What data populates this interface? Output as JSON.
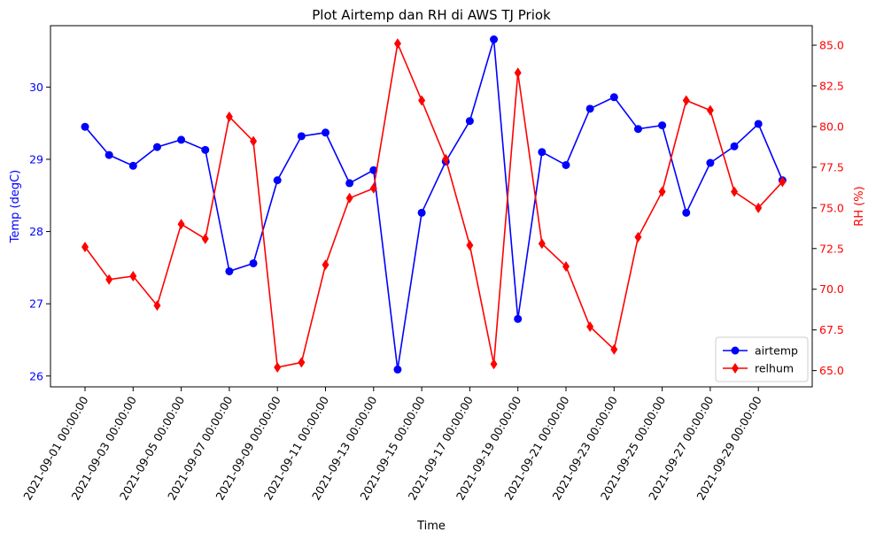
{
  "chart_data": {
    "type": "line",
    "title": "Plot Airtemp dan RH di AWS TJ Priok",
    "xlabel": "Time",
    "x": [
      "2021-09-01 00:00:00",
      "2021-09-02 00:00:00",
      "2021-09-03 00:00:00",
      "2021-09-04 00:00:00",
      "2021-09-05 00:00:00",
      "2021-09-06 00:00:00",
      "2021-09-07 00:00:00",
      "2021-09-08 00:00:00",
      "2021-09-09 00:00:00",
      "2021-09-10 00:00:00",
      "2021-09-11 00:00:00",
      "2021-09-12 00:00:00",
      "2021-09-13 00:00:00",
      "2021-09-14 00:00:00",
      "2021-09-15 00:00:00",
      "2021-09-16 00:00:00",
      "2021-09-17 00:00:00",
      "2021-09-18 00:00:00",
      "2021-09-19 00:00:00",
      "2021-09-20 00:00:00",
      "2021-09-21 00:00:00",
      "2021-09-22 00:00:00",
      "2021-09-23 00:00:00",
      "2021-09-24 00:00:00",
      "2021-09-25 00:00:00",
      "2021-09-26 00:00:00",
      "2021-09-27 00:00:00",
      "2021-09-28 00:00:00",
      "2021-09-29 00:00:00",
      "2021-09-30 00:00:00"
    ],
    "xticks": [
      "2021-09-01 00:00:00",
      "2021-09-03 00:00:00",
      "2021-09-05 00:00:00",
      "2021-09-07 00:00:00",
      "2021-09-09 00:00:00",
      "2021-09-11 00:00:00",
      "2021-09-13 00:00:00",
      "2021-09-15 00:00:00",
      "2021-09-17 00:00:00",
      "2021-09-19 00:00:00",
      "2021-09-21 00:00:00",
      "2021-09-23 00:00:00",
      "2021-09-25 00:00:00",
      "2021-09-27 00:00:00",
      "2021-09-29 00:00:00"
    ],
    "left_axis": {
      "label": "Temp (degC)",
      "color": "#0000ff",
      "ylim": [
        25.85,
        30.85
      ],
      "ticks": [
        26,
        27,
        28,
        29,
        30
      ]
    },
    "right_axis": {
      "label": "RH (%)",
      "color": "#ff0000",
      "ylim": [
        64.0,
        86.2
      ],
      "ticks": [
        65.0,
        67.5,
        70.0,
        72.5,
        75.0,
        77.5,
        80.0,
        82.5,
        85.0
      ]
    },
    "series": [
      {
        "name": "airtemp",
        "axis": "left",
        "color": "#0000ff",
        "marker": "circle",
        "values": [
          29.45,
          29.06,
          28.91,
          29.17,
          29.27,
          29.13,
          27.45,
          27.56,
          28.71,
          29.32,
          29.37,
          28.67,
          28.85,
          26.09,
          28.26,
          28.97,
          29.53,
          30.66,
          26.79,
          29.1,
          28.92,
          29.7,
          29.86,
          29.42,
          29.47,
          28.26,
          28.95,
          29.18,
          29.49,
          28.71
        ]
      },
      {
        "name": "relhum",
        "axis": "right",
        "color": "#ff0000",
        "marker": "diamond",
        "values": [
          72.6,
          70.6,
          70.8,
          69.0,
          74.0,
          73.1,
          80.6,
          79.1,
          65.2,
          65.5,
          71.5,
          75.6,
          76.2,
          85.1,
          81.6,
          78.0,
          72.7,
          65.4,
          83.3,
          72.8,
          71.4,
          67.7,
          66.3,
          73.2,
          76.0,
          81.6,
          81.0,
          76.0,
          75.0,
          76.6
        ]
      }
    ],
    "legend_position": "lower-right",
    "grid": false
  }
}
